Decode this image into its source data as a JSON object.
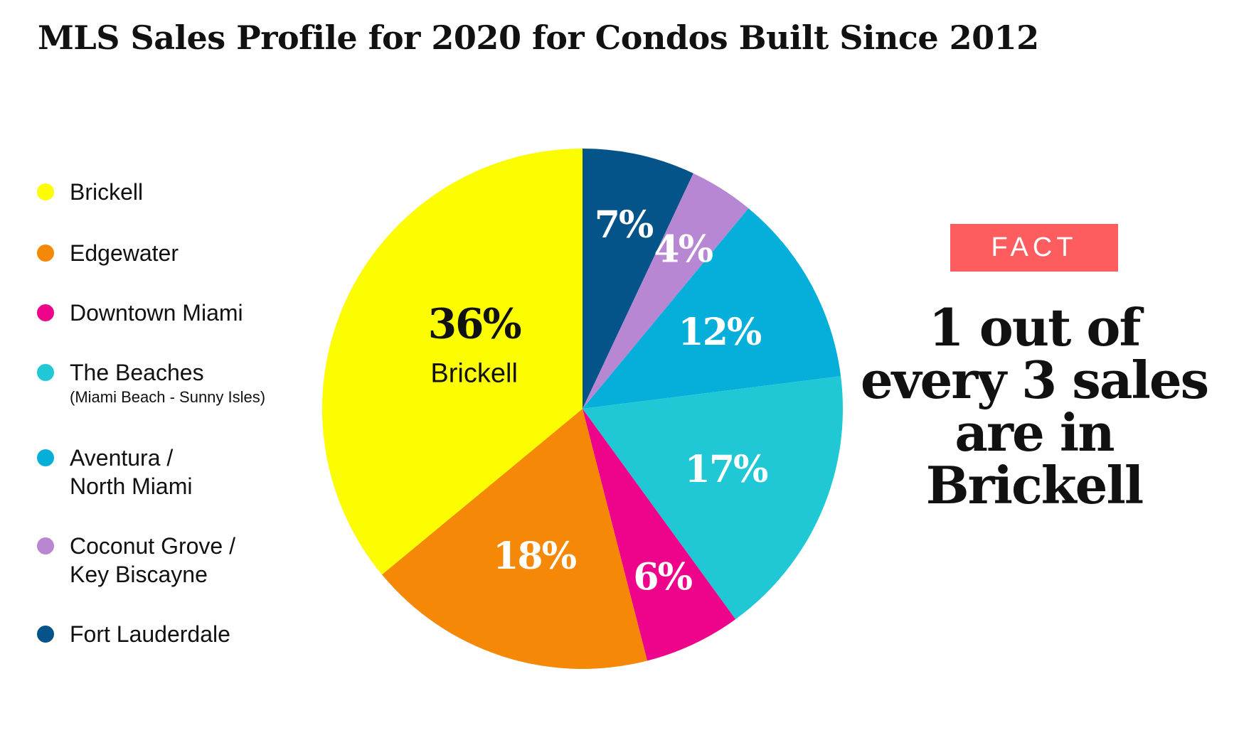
{
  "header": {
    "title": "MLS Sales Profile for 2020 for Condos Built Since 2012"
  },
  "chart_data": {
    "type": "pie",
    "title": "MLS Sales Profile for 2020 for Condos Built Since 2012",
    "slices": [
      {
        "name": "Fort Lauderdale",
        "value": 7,
        "label": "7%",
        "color": "#04548a",
        "label_color": "#ffffff"
      },
      {
        "name": "Coconut Grove / Key Biscayne",
        "value": 4,
        "label": "4%",
        "color": "#b887d4",
        "label_color": "#ffffff"
      },
      {
        "name": "Aventura / North Miami",
        "value": 12,
        "label": "12%",
        "color": "#06afd9",
        "label_color": "#ffffff"
      },
      {
        "name": "The Beaches",
        "value": 17,
        "label": "17%",
        "color": "#1fc8d4",
        "label_color": "#ffffff"
      },
      {
        "name": "Downtown Miami",
        "value": 6,
        "label": "6%",
        "color": "#ed048a",
        "label_color": "#ffffff"
      },
      {
        "name": "Edgewater",
        "value": 18,
        "label": "18%",
        "color": "#f58806",
        "label_color": "#ffffff"
      },
      {
        "name": "Brickell",
        "value": 36,
        "label": "36%",
        "sublabel": "Brickell",
        "color": "#fdfd02",
        "label_color": "#111111"
      }
    ],
    "legend": {
      "position": "left",
      "items": [
        {
          "label": "Brickell",
          "color": "#fdfd02"
        },
        {
          "label": "Edgewater",
          "color": "#f58806"
        },
        {
          "label": "Downtown Miami",
          "color": "#ed048a"
        },
        {
          "label": "The Beaches",
          "sub": "(Miami Beach - Sunny Isles)",
          "color": "#1fc8d4"
        },
        {
          "label": "Aventura /",
          "label2": "North Miami",
          "color": "#06afd9"
        },
        {
          "label": "Coconut Grove /",
          "label2": "Key Biscayne",
          "color": "#b887d4"
        },
        {
          "label": "Fort Lauderdale",
          "color": "#04548a"
        }
      ]
    }
  },
  "fact": {
    "badge": "FACT",
    "lines": [
      "1 out of",
      "every 3 sales",
      "are in",
      "Brickell"
    ],
    "badge_color": "#fd5d5e"
  }
}
